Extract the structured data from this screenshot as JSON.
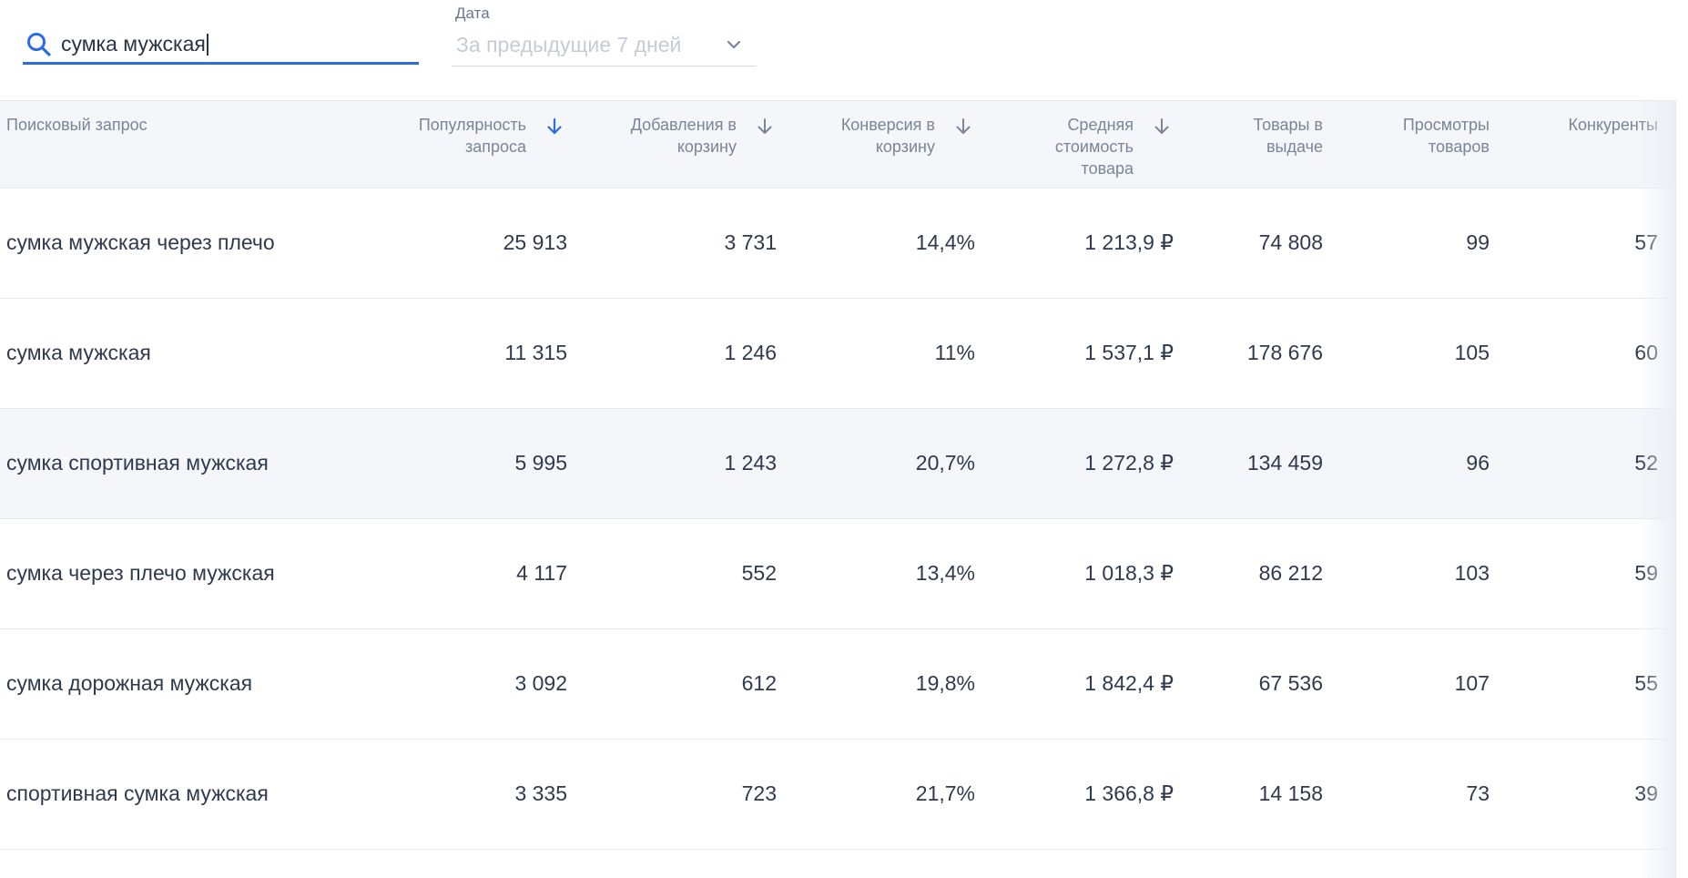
{
  "search": {
    "value": "сумка мужская",
    "icon": "search-icon",
    "accent": "#2b6de0"
  },
  "date_filter": {
    "label": "Дата",
    "value": "За предыдущие 7 дней",
    "icon": "chevron-down-icon"
  },
  "table": {
    "columns": [
      {
        "key": "query",
        "label": "Поисковый запрос",
        "sortable": false
      },
      {
        "key": "popularity",
        "label": "Популярность запроса",
        "sortable": true,
        "active_sort": true
      },
      {
        "key": "add_to_cart",
        "label": "Добавления в корзину",
        "sortable": true,
        "active_sort": false
      },
      {
        "key": "conversion",
        "label": "Конверсия в корзину",
        "sortable": true,
        "active_sort": false
      },
      {
        "key": "avg_price",
        "label": "Средняя стоимость товара",
        "sortable": true,
        "active_sort": false
      },
      {
        "key": "products",
        "label": "Товары в выдаче",
        "sortable": false
      },
      {
        "key": "views",
        "label": "Просмотры товаров",
        "sortable": false
      },
      {
        "key": "competitors",
        "label": "Конкуренты",
        "sortable": false
      }
    ],
    "rows": [
      {
        "query": "сумка мужская через плечо",
        "popularity": "25 913",
        "add_to_cart": "3 731",
        "conversion": "14,4%",
        "avg_price": "1 213,9 ₽",
        "products": "74 808",
        "views": "99",
        "competitors": "57"
      },
      {
        "query": "сумка мужская",
        "popularity": "11 315",
        "add_to_cart": "1 246",
        "conversion": "11%",
        "avg_price": "1 537,1 ₽",
        "products": "178 676",
        "views": "105",
        "competitors": "60"
      },
      {
        "query": "сумка спортивная мужская",
        "popularity": "5 995",
        "add_to_cart": "1 243",
        "conversion": "20,7%",
        "avg_price": "1 272,8 ₽",
        "products": "134 459",
        "views": "96",
        "competitors": "52",
        "highlighted": true
      },
      {
        "query": "сумка через плечо мужская",
        "popularity": "4 117",
        "add_to_cart": "552",
        "conversion": "13,4%",
        "avg_price": "1 018,3 ₽",
        "products": "86 212",
        "views": "103",
        "competitors": "59"
      },
      {
        "query": "сумка дорожная мужская",
        "popularity": "3 092",
        "add_to_cart": "612",
        "conversion": "19,8%",
        "avg_price": "1 842,4 ₽",
        "products": "67 536",
        "views": "107",
        "competitors": "55"
      },
      {
        "query": "спортивная сумка мужская",
        "popularity": "3 335",
        "add_to_cart": "723",
        "conversion": "21,7%",
        "avg_price": "1 366,8 ₽",
        "products": "14 158",
        "views": "73",
        "competitors": "39"
      }
    ]
  }
}
